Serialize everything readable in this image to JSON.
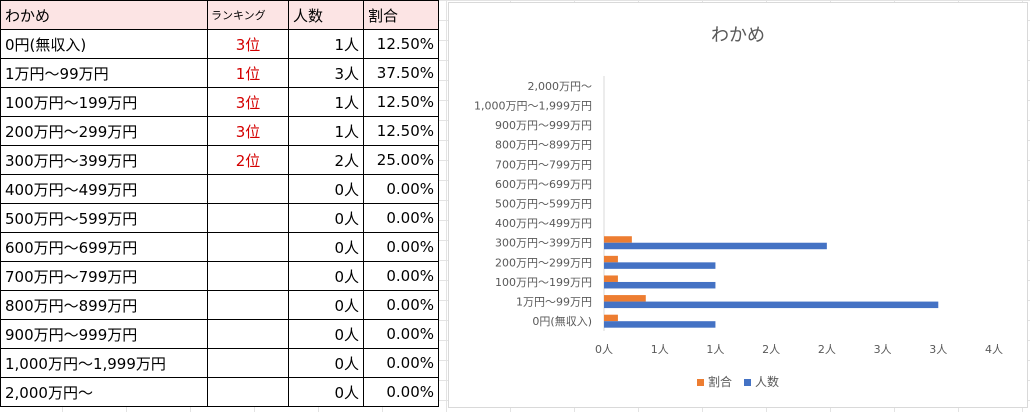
{
  "table": {
    "header": {
      "label": "わかめ",
      "rank": "ランキング",
      "count": "人数",
      "pct": "割合"
    },
    "rows": [
      {
        "label": "0円(無収入)",
        "rank": "3位",
        "count": "1人",
        "pct": "12.50%"
      },
      {
        "label": "1万円～99万円",
        "rank": "1位",
        "count": "3人",
        "pct": "37.50%"
      },
      {
        "label": "100万円～199万円",
        "rank": "3位",
        "count": "1人",
        "pct": "12.50%"
      },
      {
        "label": "200万円～299万円",
        "rank": "3位",
        "count": "1人",
        "pct": "12.50%"
      },
      {
        "label": "300万円～399万円",
        "rank": "2位",
        "count": "2人",
        "pct": "25.00%"
      },
      {
        "label": "400万円～499万円",
        "rank": "",
        "count": "0人",
        "pct": "0.00%"
      },
      {
        "label": "500万円～599万円",
        "rank": "",
        "count": "0人",
        "pct": "0.00%"
      },
      {
        "label": "600万円～699万円",
        "rank": "",
        "count": "0人",
        "pct": "0.00%"
      },
      {
        "label": "700万円～799万円",
        "rank": "",
        "count": "0人",
        "pct": "0.00%"
      },
      {
        "label": "800万円～899万円",
        "rank": "",
        "count": "0人",
        "pct": "0.00%"
      },
      {
        "label": "900万円～999万円",
        "rank": "",
        "count": "0人",
        "pct": "0.00%"
      },
      {
        "label": "1,000万円～1,999万円",
        "rank": "",
        "count": "0人",
        "pct": "0.00%"
      },
      {
        "label": "2,000万円～",
        "rank": "",
        "count": "0人",
        "pct": "0.00%"
      }
    ]
  },
  "chart_data": {
    "type": "bar",
    "orientation": "horizontal",
    "title": "わかめ",
    "categories": [
      "0円(無収入)",
      "1万円～99万円",
      "100万円～199万円",
      "200万円～299万円",
      "300万円～399万円",
      "400万円～499万円",
      "500万円～599万円",
      "600万円～699万円",
      "700万円～799万円",
      "800万円～899万円",
      "900万円～999万円",
      "1,000万円～1,999万円",
      "2,000万円～"
    ],
    "series": [
      {
        "name": "人数",
        "color": "#4472c4",
        "values": [
          1,
          3,
          1,
          1,
          2,
          0,
          0,
          0,
          0,
          0,
          0,
          0,
          0
        ]
      },
      {
        "name": "割合",
        "color": "#ed7d31",
        "values": [
          0.125,
          0.375,
          0.125,
          0.125,
          0.25,
          0,
          0,
          0,
          0,
          0,
          0,
          0,
          0
        ]
      }
    ],
    "xlim": [
      0,
      3.5
    ],
    "x_ticks": [
      0,
      0.5,
      1,
      1.5,
      2,
      2.5,
      3,
      3.5
    ],
    "x_tick_labels": [
      "0人",
      "1人",
      "1人",
      "2人",
      "2人",
      "3人",
      "3人",
      "4人"
    ],
    "legend": {
      "position": "bottom",
      "items": [
        "割合",
        "人数"
      ]
    },
    "grid": false
  }
}
